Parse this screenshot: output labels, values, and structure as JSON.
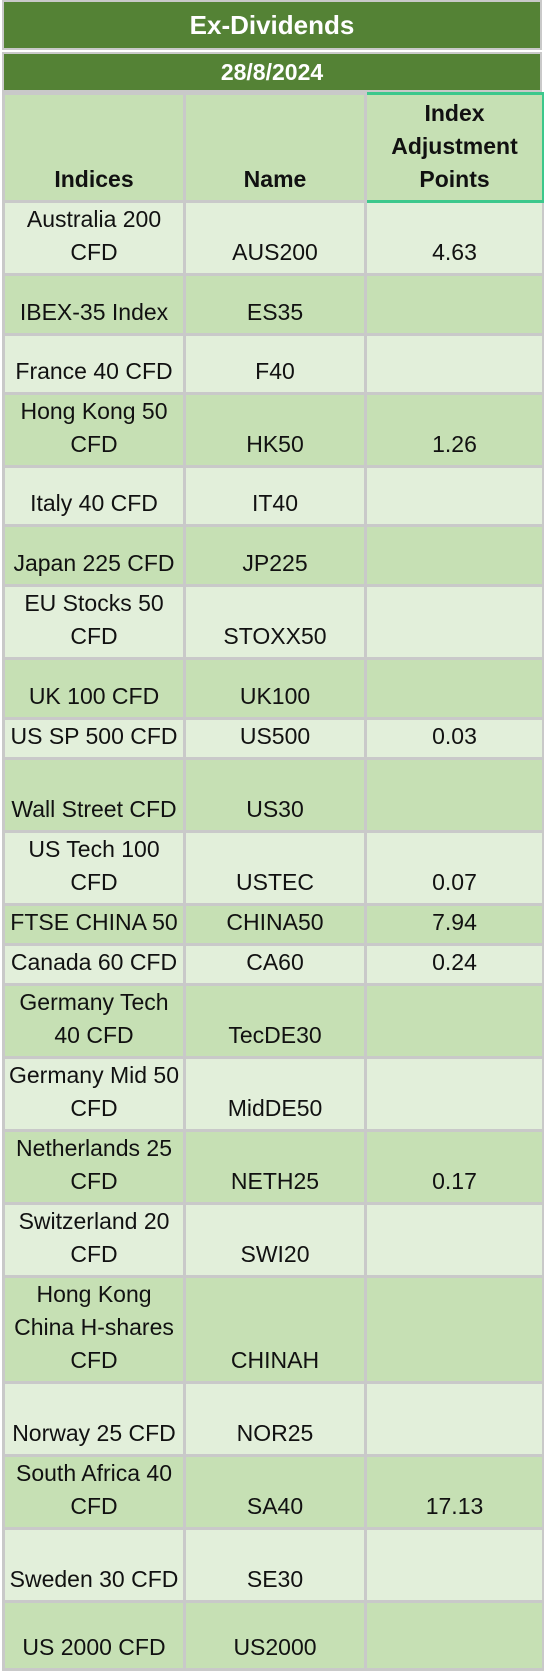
{
  "title": "Ex-Dividends",
  "date": "28/8/2024",
  "columns": [
    "Indices",
    "Name",
    "Index Adjustment Points"
  ],
  "rows": [
    {
      "index": "Australia 200 CFD",
      "name": "AUS200",
      "points": "4.63",
      "h": 73
    },
    {
      "index": "IBEX-35 Index",
      "name": "ES35",
      "points": "",
      "h": 60
    },
    {
      "index": "France 40 CFD",
      "name": "F40",
      "points": "",
      "h": 59
    },
    {
      "index": "Hong Kong 50 CFD",
      "name": "HK50",
      "points": "1.26",
      "h": 73
    },
    {
      "index": "Italy 40 CFD",
      "name": "IT40",
      "points": "",
      "h": 59
    },
    {
      "index": "Japan 225 CFD",
      "name": "JP225",
      "points": "",
      "h": 60
    },
    {
      "index": "EU Stocks 50 CFD",
      "name": "STOXX50",
      "points": "",
      "h": 73
    },
    {
      "index": "UK 100 CFD",
      "name": "UK100",
      "points": "",
      "h": 60
    },
    {
      "index": "US SP 500 CFD",
      "name": "US500",
      "points": "0.03",
      "h": 40
    },
    {
      "index": "Wall Street CFD",
      "name": "US30",
      "points": "",
      "h": 73
    },
    {
      "index": "US Tech 100 CFD",
      "name": "USTEC",
      "points": "0.07",
      "h": 73
    },
    {
      "index": "FTSE CHINA 50",
      "name": "CHINA50",
      "points": "7.94",
      "h": 40
    },
    {
      "index": "Canada 60 CFD",
      "name": "CA60",
      "points": "0.24",
      "h": 40
    },
    {
      "index": "Germany Tech 40 CFD",
      "name": "TecDE30",
      "points": "",
      "h": 73
    },
    {
      "index": "Germany Mid 50 CFD",
      "name": "MidDE50",
      "points": "",
      "h": 73
    },
    {
      "index": "Netherlands 25 CFD",
      "name": "NETH25",
      "points": "0.17",
      "h": 73
    },
    {
      "index": "Switzerland 20 CFD",
      "name": "SWI20",
      "points": "",
      "h": 73
    },
    {
      "index": "Hong Kong China H-shares CFD",
      "name": "CHINAH",
      "points": "",
      "h": 106
    },
    {
      "index": "Norway 25 CFD",
      "name": "NOR25",
      "points": "",
      "h": 73
    },
    {
      "index": "South Africa 40 CFD",
      "name": "SA40",
      "points": "17.13",
      "h": 73
    },
    {
      "index": "Sweden 30 CFD",
      "name": "SE30",
      "points": "",
      "h": 73
    },
    {
      "index": "US 2000 CFD",
      "name": "US2000",
      "points": "",
      "h": 68
    }
  ]
}
